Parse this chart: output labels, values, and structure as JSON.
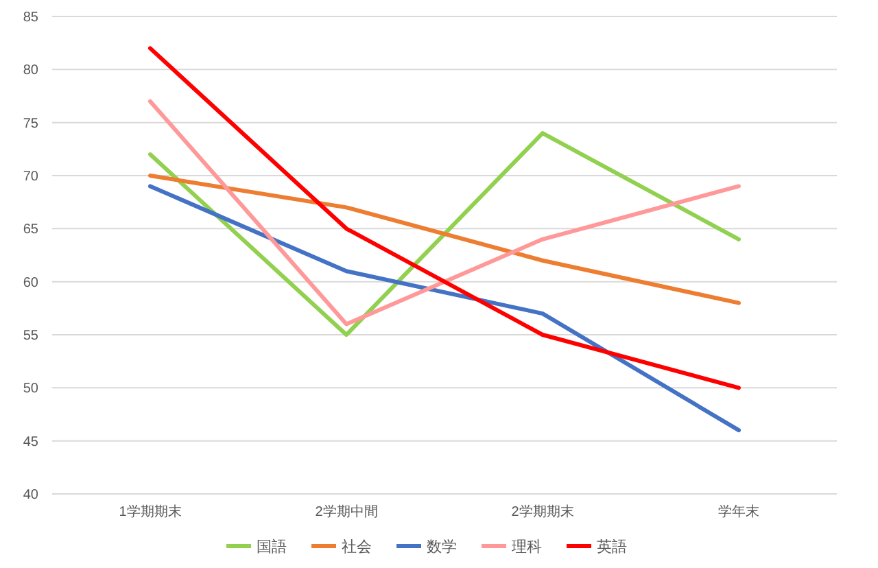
{
  "chart_data": {
    "type": "line",
    "categories": [
      "1学期期末",
      "2学期中間",
      "2学期期末",
      "学年末"
    ],
    "series": [
      {
        "name": "国語",
        "color": "#92d050",
        "values": [
          72,
          55,
          74,
          64
        ]
      },
      {
        "name": "社会",
        "color": "#ed7d31",
        "values": [
          70,
          67,
          62,
          58
        ]
      },
      {
        "name": "数学",
        "color": "#4472c4",
        "values": [
          69,
          61,
          57,
          46
        ]
      },
      {
        "name": "理科",
        "color": "#ff9999",
        "values": [
          77,
          56,
          64,
          69
        ]
      },
      {
        "name": "英語",
        "color": "#ff0000",
        "values": [
          82,
          65,
          55,
          50
        ]
      }
    ],
    "ylim": [
      40,
      85
    ],
    "yticks": [
      40,
      45,
      50,
      55,
      60,
      65,
      70,
      75,
      80,
      85
    ],
    "grid": "y",
    "legend": "bottom",
    "marker": "none",
    "line_style": "solid"
  }
}
